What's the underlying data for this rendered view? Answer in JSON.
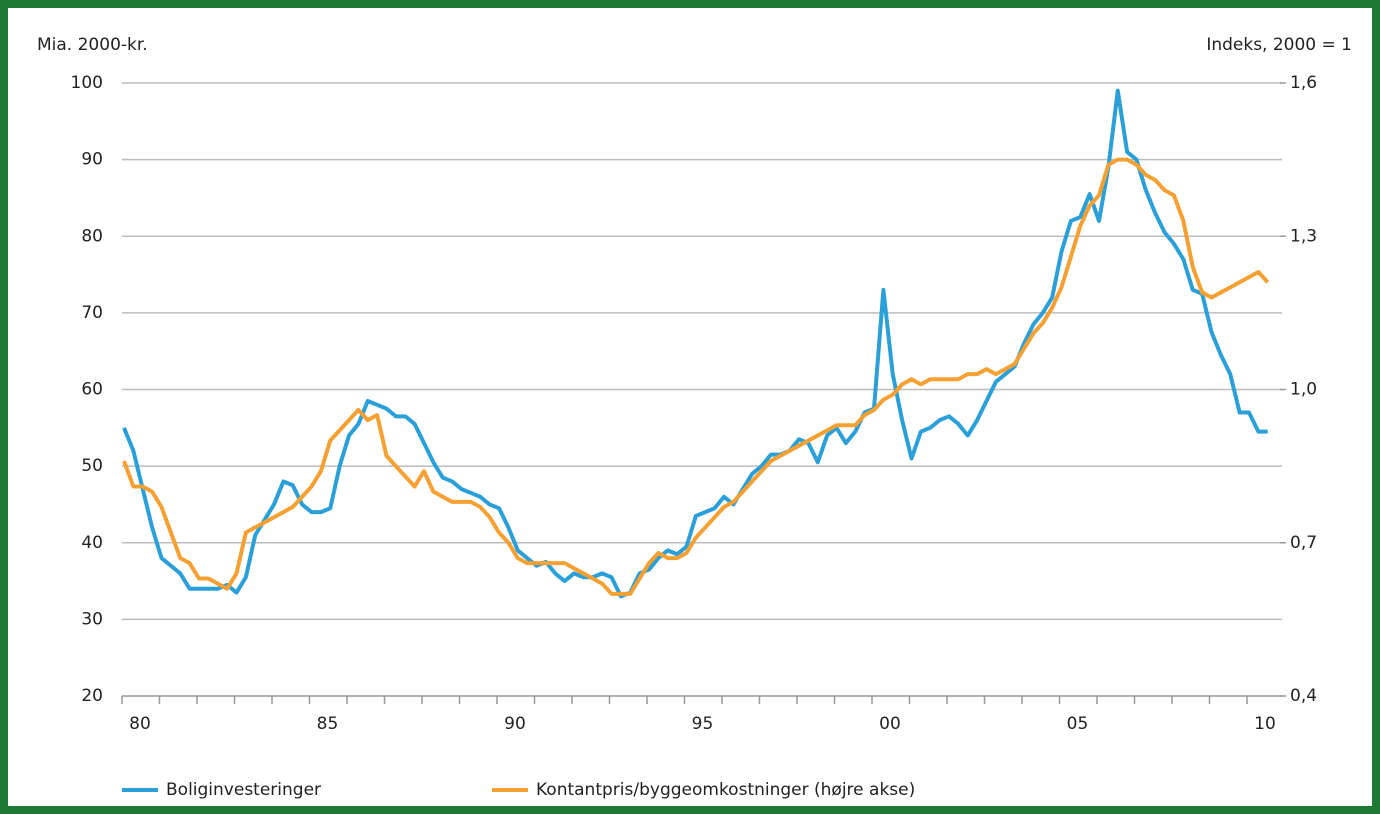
{
  "chart_data": {
    "type": "line",
    "y_label": "Mia. 2000-kr.",
    "y2_label": "Indeks, 2000 = 1",
    "categories": [
      "80",
      null,
      null,
      null,
      null,
      null,
      null,
      null,
      null,
      null,
      null,
      null,
      null,
      null,
      null,
      null,
      null,
      null,
      null,
      null,
      "85",
      null,
      null,
      null,
      null,
      null,
      null,
      null,
      null,
      null,
      null,
      null,
      null,
      null,
      null,
      null,
      null,
      null,
      null,
      null,
      "90",
      null,
      null,
      null,
      null,
      null,
      null,
      null,
      null,
      null,
      null,
      null,
      null,
      null,
      null,
      null,
      null,
      null,
      null,
      null,
      "95",
      null,
      null,
      null,
      null,
      null,
      null,
      null,
      null,
      null,
      null,
      null,
      null,
      null,
      null,
      null,
      null,
      null,
      null,
      null,
      "00",
      null,
      null,
      null,
      null,
      null,
      null,
      null,
      null,
      null,
      null,
      null,
      null,
      null,
      null,
      null,
      null,
      null,
      null,
      null,
      "05",
      null,
      null,
      null,
      null,
      null,
      null,
      null,
      null,
      null,
      null,
      null,
      null,
      null,
      null,
      null,
      null,
      null,
      null,
      null,
      "10",
      null,
      null
    ],
    "ylim": [
      20,
      100
    ],
    "yticks": [
      20,
      30,
      40,
      50,
      60,
      70,
      80,
      90,
      100
    ],
    "y2lim": [
      0.4,
      1.6
    ],
    "y2ticks": [
      {
        "value": 0.4,
        "label": "0,4"
      },
      {
        "value": 0.7,
        "label": "0,7"
      },
      {
        "value": 1.0,
        "label": "1,0"
      },
      {
        "value": 1.3,
        "label": "1,3"
      },
      {
        "value": 1.6,
        "label": "1,6"
      }
    ],
    "grid": true,
    "legend": "bottom",
    "series": [
      {
        "name": "Boliginvesteringer",
        "color": "#2b9fd8",
        "values": [
          55,
          52,
          47,
          42,
          38,
          37,
          36,
          34,
          34,
          34,
          34,
          34.5,
          33.5,
          35.5,
          41,
          43,
          45,
          48,
          47.5,
          45,
          44,
          44,
          44.5,
          50,
          54,
          55.5,
          58.5,
          58,
          57.5,
          56.5,
          56.5,
          55.5,
          53,
          50.5,
          48.5,
          48,
          47,
          46.5,
          46,
          45,
          44.5,
          42,
          39,
          38,
          37,
          37.5,
          36,
          35,
          36,
          35.5,
          35.5,
          36,
          35.5,
          33,
          33.5,
          36,
          36.5,
          38,
          39,
          38.5,
          39.5,
          43.5,
          44,
          44.5,
          46,
          45,
          47,
          49,
          50,
          51.5,
          51.5,
          52,
          53.5,
          53,
          50.5,
          54,
          55,
          53,
          54.5,
          57,
          57.5,
          73,
          62,
          56,
          51,
          54.5,
          55,
          56,
          56.5,
          55.5,
          54,
          56,
          58.5,
          61,
          62,
          63,
          66,
          68.5,
          70,
          72,
          78,
          82,
          82.5,
          85.5,
          82,
          89,
          99,
          91,
          90,
          86,
          83,
          80.5,
          79,
          77,
          73,
          72.5,
          67.5,
          64.5,
          62,
          57,
          57,
          54.5,
          54.5
        ]
      },
      {
        "name": "Kontantpris/byggeomkostninger (højre akse)",
        "color": "#f5a033",
        "axis": "y2",
        "values": [
          0.86,
          0.81,
          0.81,
          0.8,
          0.77,
          0.72,
          0.67,
          0.66,
          0.63,
          0.63,
          0.62,
          0.61,
          0.64,
          0.72,
          0.73,
          0.74,
          0.75,
          0.76,
          0.77,
          0.79,
          0.81,
          0.84,
          0.9,
          0.92,
          0.94,
          0.96,
          0.94,
          0.95,
          0.87,
          0.85,
          0.83,
          0.81,
          0.84,
          0.8,
          0.79,
          0.78,
          0.78,
          0.78,
          0.77,
          0.75,
          0.72,
          0.7,
          0.67,
          0.66,
          0.66,
          0.66,
          0.66,
          0.66,
          0.65,
          0.64,
          0.63,
          0.62,
          0.6,
          0.6,
          0.6,
          0.63,
          0.66,
          0.68,
          0.67,
          0.67,
          0.68,
          0.71,
          0.73,
          0.75,
          0.77,
          0.78,
          0.8,
          0.82,
          0.84,
          0.86,
          0.87,
          0.88,
          0.89,
          0.9,
          0.91,
          0.92,
          0.93,
          0.93,
          0.93,
          0.95,
          0.96,
          0.98,
          0.99,
          1.01,
          1.02,
          1.01,
          1.02,
          1.02,
          1.02,
          1.02,
          1.03,
          1.03,
          1.04,
          1.03,
          1.04,
          1.05,
          1.08,
          1.11,
          1.13,
          1.16,
          1.2,
          1.26,
          1.32,
          1.36,
          1.38,
          1.44,
          1.45,
          1.45,
          1.44,
          1.42,
          1.41,
          1.39,
          1.38,
          1.33,
          1.24,
          1.19,
          1.18,
          1.19,
          1.2,
          1.21,
          1.22,
          1.23,
          1.21
        ]
      }
    ]
  }
}
